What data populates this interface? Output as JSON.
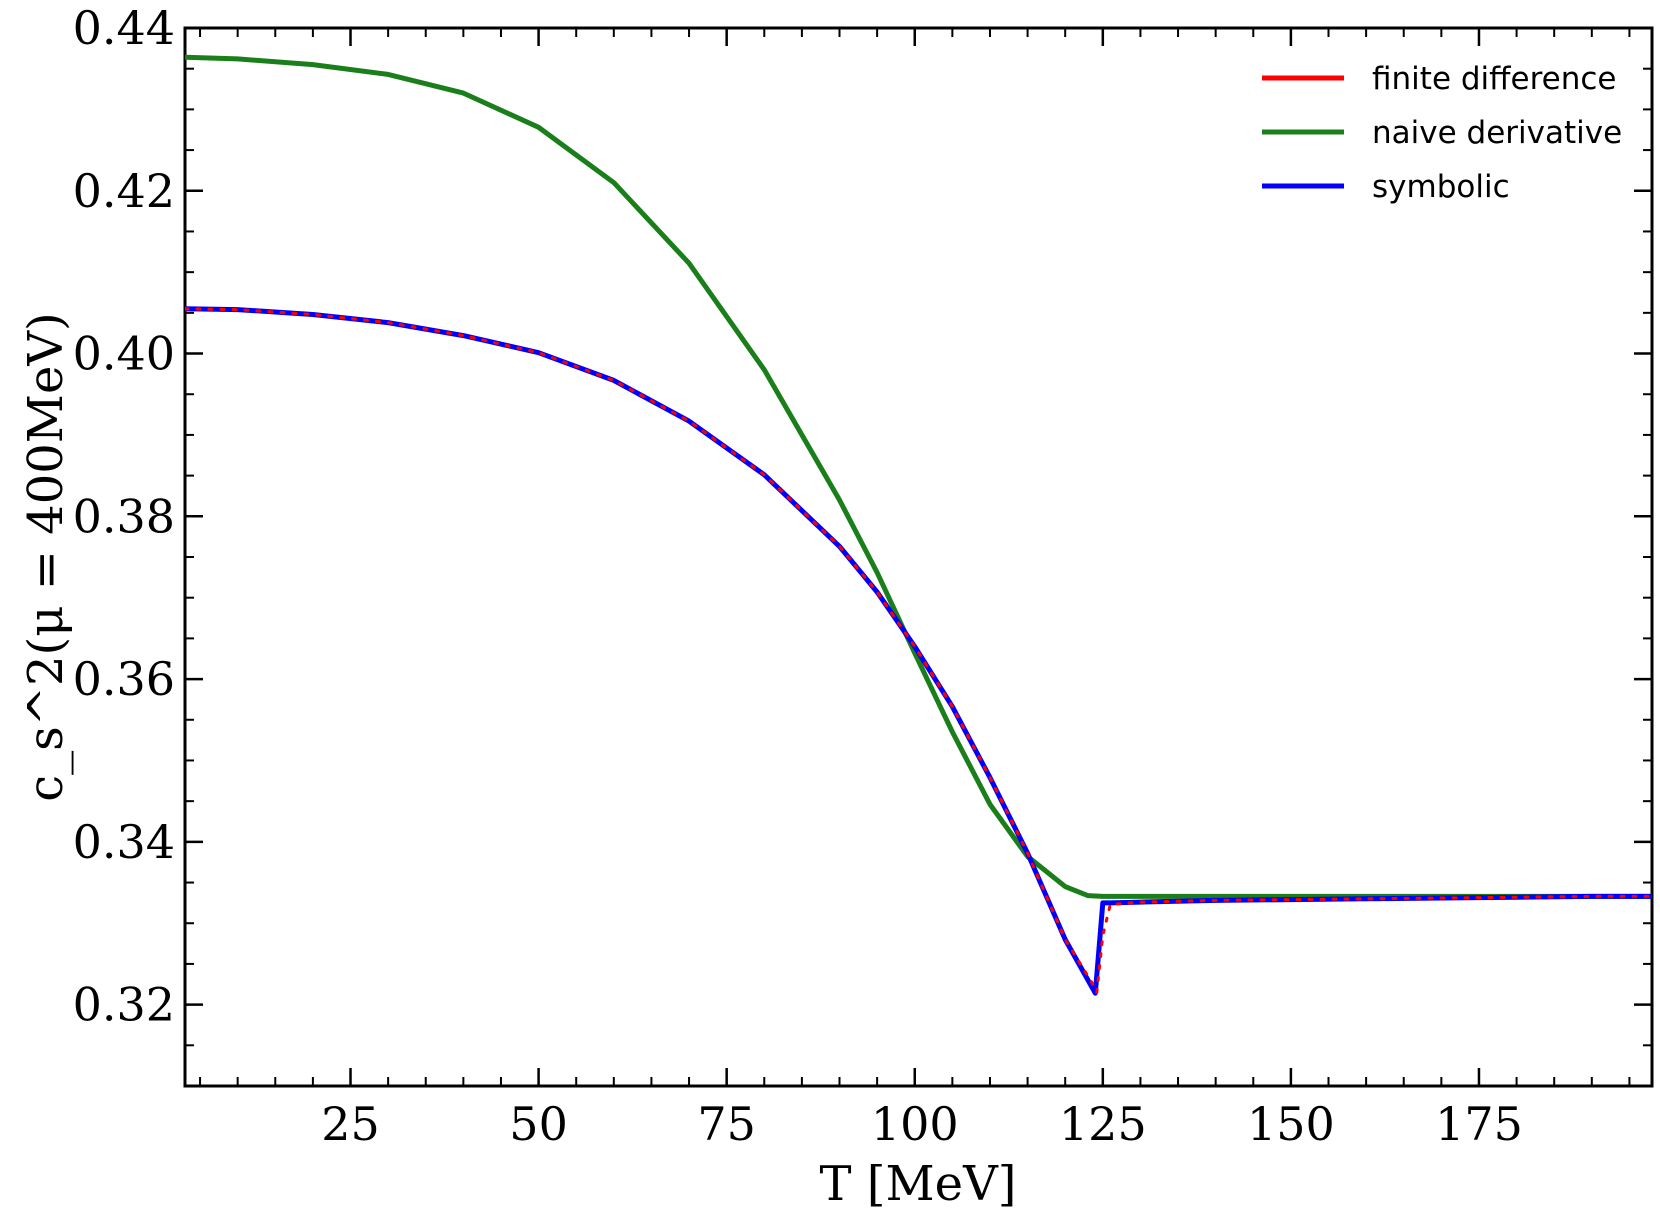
{
  "chart_data": {
    "type": "line",
    "xlabel": "T [MeV]",
    "ylabel": "c_s^2(μ = 400MeV)",
    "xlim": [
      3,
      198
    ],
    "ylim": [
      0.31,
      0.44
    ],
    "xticks": [
      25,
      50,
      75,
      100,
      125,
      150,
      175
    ],
    "yticks": [
      0.32,
      0.34,
      0.36,
      0.38,
      0.4,
      0.42,
      0.44
    ],
    "xtick_labels": [
      "25",
      "50",
      "75",
      "100",
      "125",
      "150",
      "175"
    ],
    "ytick_labels": [
      "0.32",
      "0.34",
      "0.36",
      "0.38",
      "0.40",
      "0.42",
      "0.44"
    ],
    "grid": false,
    "legend_position": "top-right",
    "series": [
      {
        "name": "finite difference",
        "color": "#ff0000",
        "dashed": true,
        "x": [
          3,
          10,
          20,
          30,
          40,
          50,
          60,
          70,
          80,
          90,
          95,
          100,
          105,
          110,
          115,
          120,
          123.5,
          124.2,
          125,
          126,
          130,
          140,
          150,
          160,
          170,
          180,
          190,
          198
        ],
        "y": [
          0.4055,
          0.4054,
          0.4048,
          0.4038,
          0.4022,
          0.4001,
          0.3967,
          0.3917,
          0.3851,
          0.3763,
          0.3707,
          0.364,
          0.3566,
          0.3479,
          0.3386,
          0.328,
          0.3228,
          0.3215,
          0.3285,
          0.3323,
          0.3326,
          0.3328,
          0.3329,
          0.333,
          0.3331,
          0.3332,
          0.3333,
          0.3333
        ]
      },
      {
        "name": "naive derivative",
        "color": "#1a7f1a",
        "dashed": false,
        "x": [
          3,
          10,
          20,
          30,
          40,
          50,
          60,
          70,
          80,
          90,
          95,
          100,
          105,
          110,
          115,
          120,
          123,
          125,
          130,
          140,
          150,
          160,
          170,
          180,
          190,
          198
        ],
        "y": [
          0.4364,
          0.4362,
          0.4355,
          0.4343,
          0.432,
          0.4278,
          0.421,
          0.4111,
          0.398,
          0.382,
          0.3731,
          0.3632,
          0.3535,
          0.3446,
          0.3382,
          0.3345,
          0.3334,
          0.3333,
          0.3333,
          0.3333,
          0.3333,
          0.3333,
          0.3333,
          0.3333,
          0.3333,
          0.3333
        ]
      },
      {
        "name": "symbolic",
        "color": "#0000ff",
        "dashed": false,
        "x": [
          3,
          10,
          20,
          30,
          40,
          50,
          60,
          70,
          80,
          90,
          95,
          100,
          105,
          110,
          115,
          120,
          124,
          125,
          126,
          130,
          140,
          150,
          160,
          170,
          180,
          190,
          198
        ],
        "y": [
          0.4055,
          0.4054,
          0.4048,
          0.4038,
          0.4022,
          0.4001,
          0.3967,
          0.3917,
          0.3851,
          0.3763,
          0.3707,
          0.364,
          0.3566,
          0.3479,
          0.3386,
          0.328,
          0.3214,
          0.3325,
          0.3325,
          0.3326,
          0.3328,
          0.3329,
          0.333,
          0.3331,
          0.3332,
          0.3333,
          0.3333
        ]
      }
    ]
  }
}
